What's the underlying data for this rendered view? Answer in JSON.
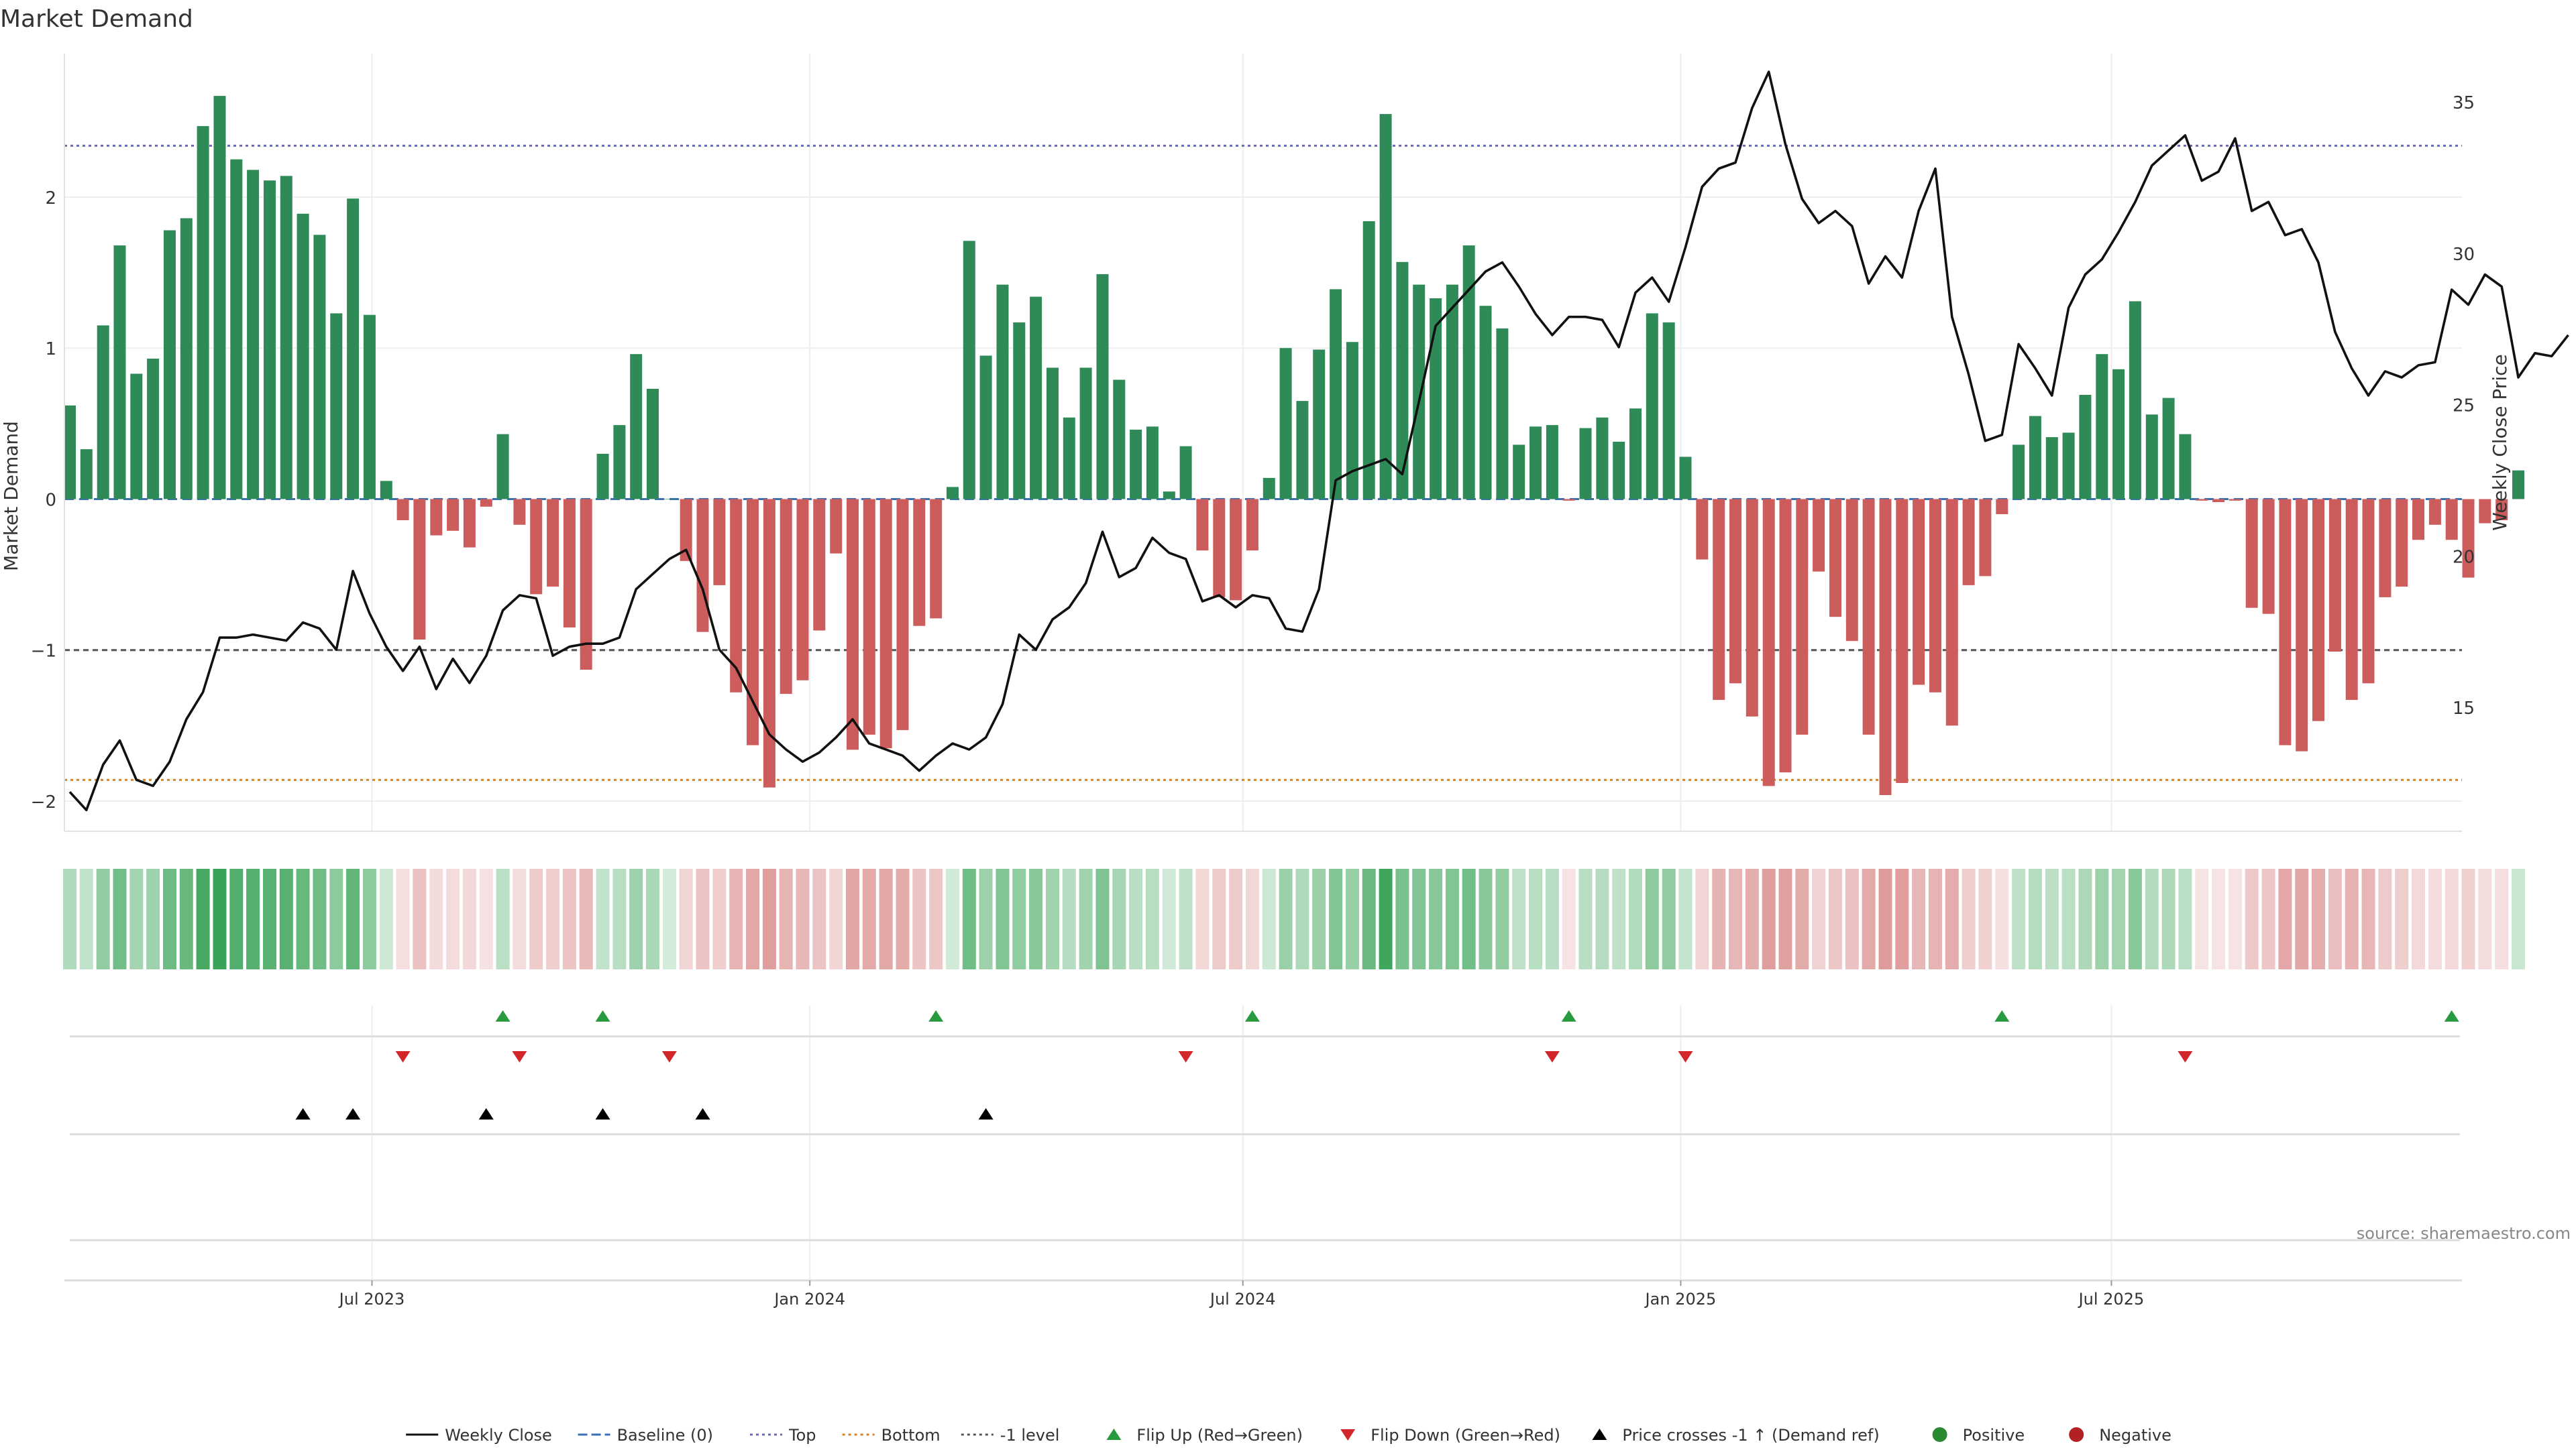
{
  "chart_data": {
    "type": "bar",
    "title": "Market Demand",
    "ylabel": "Market Demand",
    "y2label": "Weekly Close Price",
    "ylim": [
      -2.2,
      2.95
    ],
    "y2lim": [
      10.9,
      36.6
    ],
    "yticks": [
      2,
      1,
      0,
      -1,
      -2
    ],
    "y2ticks": [
      35,
      30,
      25,
      20,
      15
    ],
    "levels": {
      "top": 2.34,
      "bottom": -1.86,
      "minus_one": -1.0,
      "baseline": 0
    },
    "x_start": "2023-02-24",
    "x_step_days": 7,
    "x_end_index": 143.5,
    "xticks": [
      {
        "label": "Jul 2023",
        "date": "2023-07-01"
      },
      {
        "label": "Jan 2024",
        "date": "2024-01-01"
      },
      {
        "label": "Jul 2024",
        "date": "2024-07-01"
      },
      {
        "label": "Jan 2025",
        "date": "2025-01-01"
      },
      {
        "label": "Jul 2025",
        "date": "2025-07-01"
      }
    ],
    "demand": [
      0.62,
      0.33,
      1.15,
      1.68,
      0.83,
      0.93,
      1.78,
      1.86,
      2.47,
      2.67,
      2.25,
      2.18,
      2.11,
      2.14,
      1.89,
      1.75,
      1.23,
      1.99,
      1.22,
      0.12,
      -0.14,
      -0.93,
      -0.24,
      -0.21,
      -0.32,
      -0.05,
      0.43,
      -0.17,
      -0.63,
      -0.58,
      -0.85,
      -1.13,
      0.3,
      0.49,
      0.96,
      0.73,
      0.0,
      -0.41,
      -0.88,
      -0.57,
      -1.28,
      -1.63,
      -1.91,
      -1.29,
      -1.2,
      -0.87,
      -0.36,
      -1.66,
      -1.56,
      -1.65,
      -1.53,
      -0.84,
      -0.79,
      0.08,
      1.71,
      0.95,
      1.42,
      1.17,
      1.34,
      0.87,
      0.54,
      0.87,
      1.49,
      0.79,
      0.46,
      0.48,
      0.05,
      0.35,
      -0.34,
      -0.65,
      -0.67,
      -0.34,
      0.14,
      1.0,
      0.65,
      0.99,
      1.39,
      1.04,
      1.84,
      2.55,
      1.57,
      1.42,
      1.33,
      1.42,
      1.68,
      1.28,
      1.13,
      0.36,
      0.48,
      0.49,
      -0.01,
      0.47,
      0.54,
      0.38,
      0.6,
      1.23,
      1.17,
      0.28,
      -0.4,
      -1.33,
      -1.22,
      -1.44,
      -1.9,
      -1.81,
      -1.56,
      -0.48,
      -0.78,
      -0.94,
      -1.56,
      -1.96,
      -1.88,
      -1.23,
      -1.28,
      -1.5,
      -0.57,
      -0.51,
      -0.1,
      0.36,
      0.55,
      0.41,
      0.44,
      0.69,
      0.96,
      0.86,
      1.31,
      0.56,
      0.67,
      0.43,
      -0.01,
      -0.02,
      -0.01,
      -0.72,
      -0.76,
      -1.63,
      -1.67,
      -1.47,
      -1.01,
      -1.33,
      -1.22,
      -0.65,
      -0.58,
      -0.27,
      -0.17,
      -0.27,
      -0.52,
      -0.16,
      -0.14,
      0.19
    ],
    "weekly_close": [
      12.2,
      11.6,
      13.1,
      13.9,
      12.6,
      12.4,
      13.2,
      14.6,
      15.5,
      17.3,
      17.3,
      17.4,
      17.3,
      17.2,
      17.8,
      17.6,
      16.9,
      19.5,
      18.1,
      17.0,
      16.2,
      17.0,
      15.6,
      16.6,
      15.8,
      16.7,
      18.2,
      18.7,
      18.6,
      16.7,
      17.0,
      17.1,
      17.1,
      17.3,
      18.9,
      19.4,
      19.9,
      20.2,
      18.9,
      16.9,
      16.3,
      15.2,
      14.1,
      13.6,
      13.2,
      13.5,
      14.0,
      14.6,
      13.8,
      13.6,
      13.4,
      12.9,
      13.4,
      13.8,
      13.6,
      14.0,
      15.1,
      17.4,
      16.9,
      17.9,
      18.3,
      19.1,
      20.8,
      19.3,
      19.6,
      20.6,
      20.1,
      19.9,
      18.5,
      18.7,
      18.3,
      18.7,
      18.6,
      17.6,
      17.5,
      18.9,
      22.5,
      22.8,
      23.0,
      23.2,
      22.7,
      25.1,
      27.6,
      28.2,
      28.8,
      29.4,
      29.7,
      28.9,
      28.0,
      27.3,
      27.9,
      27.9,
      27.8,
      26.9,
      28.7,
      29.2,
      28.4,
      30.2,
      32.2,
      32.8,
      33.0,
      34.8,
      36.0,
      33.6,
      31.8,
      31.0,
      31.4,
      30.9,
      29.0,
      29.9,
      29.2,
      31.4,
      32.8,
      27.9,
      26.0,
      23.8,
      24.0,
      27.0,
      26.2,
      25.3,
      28.2,
      29.3,
      29.8,
      30.7,
      31.7,
      32.9,
      33.4,
      33.9,
      32.4,
      32.7,
      33.8,
      31.4,
      31.7,
      30.6,
      30.8,
      29.7,
      27.4,
      26.2,
      25.3,
      26.1,
      25.9,
      26.3,
      26.4,
      28.8,
      28.3,
      29.3,
      28.9,
      25.9,
      26.7,
      26.6,
      27.3
    ],
    "flip_up_idx": [
      26,
      32,
      52,
      71,
      90,
      116,
      143
    ],
    "flip_down_idx": [
      20,
      27,
      36,
      67,
      89,
      97,
      127
    ],
    "price_cross_idx": [
      14,
      17,
      25,
      32,
      38,
      55
    ],
    "legend": [
      {
        "label": "Weekly Close",
        "kind": "line",
        "color": "#111111"
      },
      {
        "label": "Baseline (0)",
        "kind": "dash",
        "color": "#3a6fb5"
      },
      {
        "label": "Top",
        "kind": "dot",
        "color": "#6a6ab8"
      },
      {
        "label": "Bottom",
        "kind": "dot",
        "color": "#d8822b"
      },
      {
        "label": "-1 level",
        "kind": "dot",
        "color": "#555555"
      },
      {
        "label": "Flip Up (Red→Green)",
        "kind": "tri-up",
        "color": "#2a9a3e"
      },
      {
        "label": "Flip Down (Green→Red)",
        "kind": "tri-down",
        "color": "#d2262b"
      },
      {
        "label": "Price crosses -1 ↑ (Demand ref)",
        "kind": "tri-up",
        "color": "#000000"
      },
      {
        "label": "Positive",
        "kind": "circle",
        "color": "#2a8a32"
      },
      {
        "label": "Negative",
        "kind": "circle",
        "color": "#b22222"
      }
    ],
    "colors": {
      "positive": "#2e8b57",
      "negative": "#cd5c5c",
      "price": "#111111",
      "grid": "#eeeeee"
    }
  },
  "source": "source: sharemaestro.com"
}
